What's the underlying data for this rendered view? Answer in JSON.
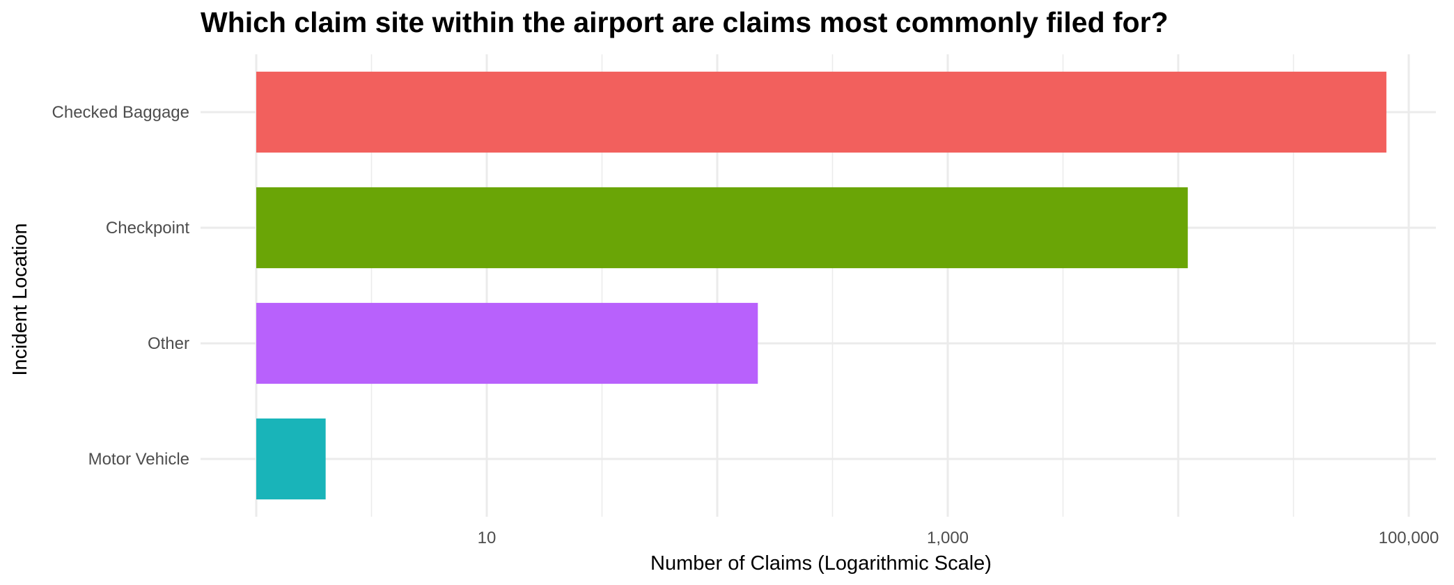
{
  "chart_data": {
    "type": "bar",
    "orientation": "horizontal",
    "title": "Which claim site within the airport are claims most commonly filed for?",
    "xlabel": "Number of Claims (Logarithmic Scale)",
    "ylabel": "Incident Location",
    "x_scale": "log10",
    "xlim": [
      1,
      100000
    ],
    "x_ticks": [
      10,
      1000,
      100000
    ],
    "x_tick_labels": [
      "10",
      "1,000",
      "100,000"
    ],
    "grid": true,
    "legend": "none",
    "categories": [
      "Checked Baggage",
      "Checkpoint",
      "Other",
      "Motor Vehicle"
    ],
    "values": [
      80000,
      11000,
      150,
      2
    ],
    "colors": [
      "#F2605D",
      "#6AA506",
      "#B861FC",
      "#19B4B9"
    ]
  }
}
